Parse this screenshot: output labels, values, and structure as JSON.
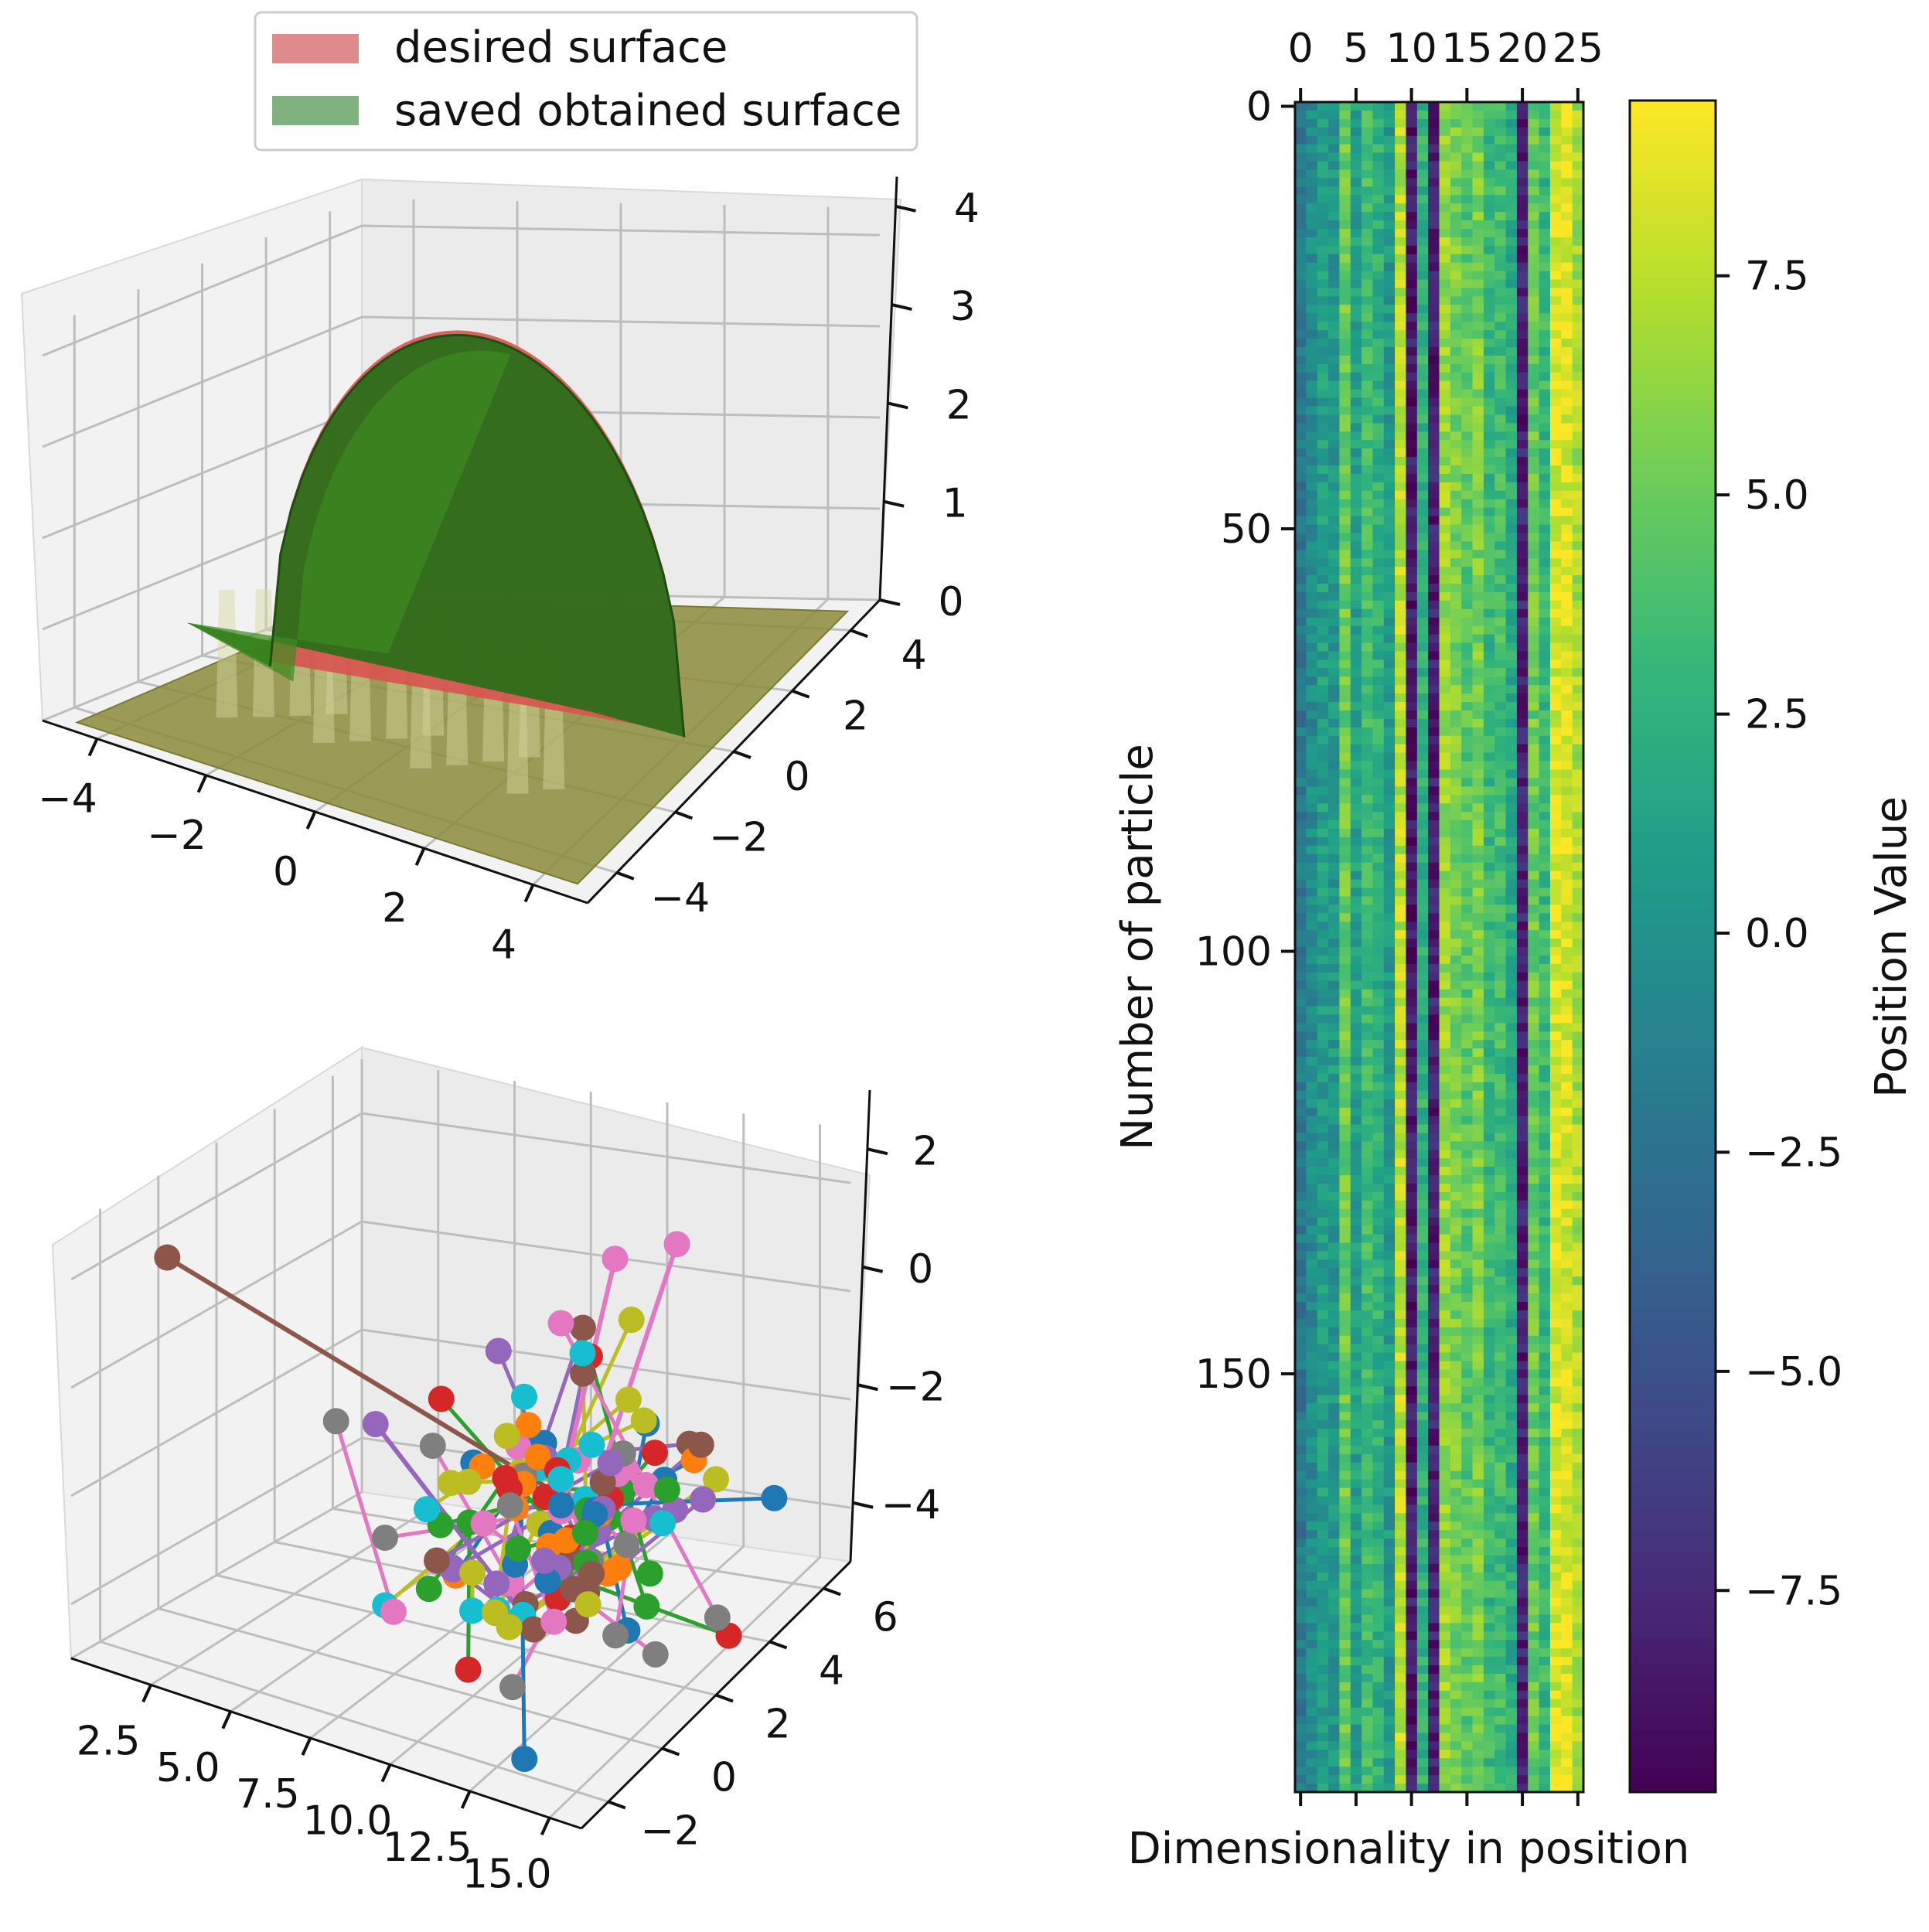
{
  "chart_data": [
    {
      "type": "surface3d",
      "legend": {
        "placement": "top",
        "entries": [
          {
            "label": "desired surface",
            "color": "#e08b8b"
          },
          {
            "label": "saved obtained surface",
            "color": "#7fb27f"
          }
        ]
      },
      "x_ticks": [
        "−4",
        "−2",
        "0",
        "2",
        "4"
      ],
      "y_ticks": [
        "−4",
        "−2",
        "0",
        "2",
        "4"
      ],
      "z_ticks": [
        "0",
        "1",
        "2",
        "3",
        "4"
      ],
      "xlim": [
        -5,
        5
      ],
      "ylim": [
        -5,
        5
      ],
      "zlim": [
        0,
        4.3
      ],
      "surface": "dome z = sqrt(16 - x^2 - y^2), 0 outside radius 4",
      "peak": 4.0
    },
    {
      "type": "scatter3d",
      "x_ticks": [
        "2.5",
        "5.0",
        "7.5",
        "10.0",
        "12.5",
        "15.0"
      ],
      "y_ticks": [
        "−2",
        "0",
        "2",
        "4",
        "6"
      ],
      "z_ticks": [
        "−4",
        "−2",
        "0",
        "2"
      ],
      "series_colors": [
        "#1f77b4",
        "#ff7f0e",
        "#2ca02c",
        "#d62728",
        "#9467bd",
        "#8c564b",
        "#e377c2",
        "#7f7f7f",
        "#bcbd22",
        "#17becf"
      ],
      "cluster_center": [
        11,
        2,
        -2.5
      ],
      "outliers": [
        {
          "color": "#8c564b",
          "from": [
            1.2,
            -1,
            2
          ],
          "to": [
            11,
            2,
            -2
          ]
        },
        {
          "color": "#9467bd",
          "from": [
            6,
            1,
            -1
          ],
          "to": [
            11,
            1,
            -4
          ]
        },
        {
          "color": "#e377c2",
          "from": [
            11,
            4,
            1.5
          ],
          "to": [
            11,
            2,
            -2
          ]
        },
        {
          "color": "#e377c2",
          "from": [
            13,
            4,
            2
          ],
          "to": [
            12,
            2,
            -2
          ]
        }
      ]
    },
    {
      "type": "heatmap",
      "xlabel": "Dimensionality in position",
      "ylabel": "Number of particle",
      "x_ticks": [
        "0",
        "5",
        "10",
        "15",
        "20",
        "25"
      ],
      "x_tick_values": [
        0,
        5,
        10,
        15,
        20,
        25
      ],
      "y_ticks": [
        "0",
        "50",
        "100",
        "150"
      ],
      "y_tick_values": [
        0,
        50,
        100,
        150
      ],
      "columns": 26,
      "rows": 200,
      "colormap": "viridis",
      "column_means": [
        -2,
        -0.5,
        1,
        0.5,
        5,
        1,
        3.5,
        2.5,
        0.5,
        7.5,
        -8.5,
        2.5,
        -8,
        6.5,
        5.5,
        4.5,
        5.5,
        3,
        3.5,
        2,
        -8,
        5,
        3,
        8.5,
        8.5,
        7
      ],
      "colorbar": {
        "label": "Position Value",
        "range": [
          -9.8,
          9.5
        ],
        "ticks": [
          "−7.5",
          "−5.0",
          "−2.5",
          "0.0",
          "2.5",
          "5.0",
          "7.5"
        ],
        "tick_values": [
          -7.5,
          -5.0,
          -2.5,
          0.0,
          2.5,
          5.0,
          7.5
        ]
      }
    }
  ]
}
